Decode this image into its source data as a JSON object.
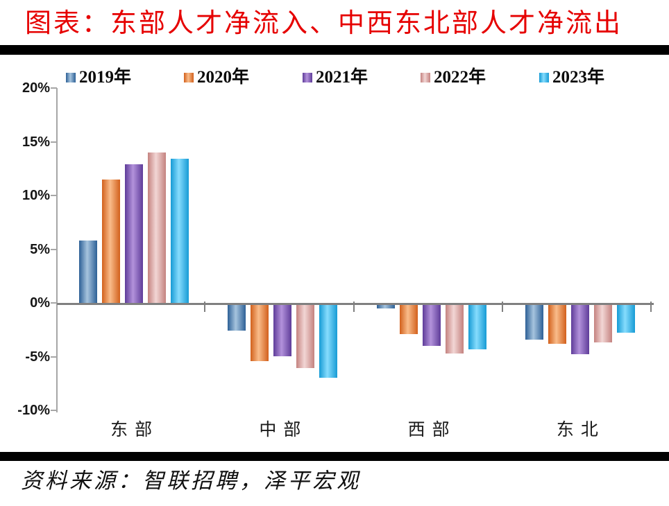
{
  "title": "图表：东部人才净流入、中西东北部人才净流出",
  "source": "资料来源：智联招聘，泽平宏观",
  "colors": {
    "title": "#e60000",
    "divider": "#000000",
    "axis": "#a6a6a6",
    "zero_line": "#808080",
    "label_text": "#0a0a0a"
  },
  "chart_data": {
    "type": "bar",
    "title": "图表：东部人才净流入、中西东北部人才净流出",
    "categories": [
      "东部",
      "中部",
      "西部",
      "东北"
    ],
    "series": [
      {
        "name": "2019年",
        "values": [
          5.8,
          -2.4,
          -0.3,
          -3.2
        ],
        "color": "#4878a8",
        "gradient_edge": "#2d6096",
        "gradient_mid": "#a6c4de"
      },
      {
        "name": "2020年",
        "values": [
          11.5,
          -5.2,
          -2.7,
          -3.6
        ],
        "color": "#ed7d31",
        "gradient_edge": "#d2601c",
        "gradient_mid": "#f9bc8a"
      },
      {
        "name": "2021年",
        "values": [
          12.9,
          -4.8,
          -3.8,
          -4.6
        ],
        "color": "#8064a2",
        "gradient_edge": "#5e3c99",
        "gradient_mid": "#b392db"
      },
      {
        "name": "2022年",
        "values": [
          14.0,
          -5.9,
          -4.5,
          -3.5
        ],
        "color": "#d99694",
        "gradient_edge": "#c4827f",
        "gradient_mid": "#f2d6d5"
      },
      {
        "name": "2023年",
        "values": [
          13.4,
          -6.8,
          -4.1,
          -2.6
        ],
        "color": "#41b6e6",
        "gradient_edge": "#169bd5",
        "gradient_mid": "#86dcfd"
      }
    ],
    "ylim": [
      -10,
      20
    ],
    "yticks": [
      {
        "label": "20%",
        "value": 20
      },
      {
        "label": "15%",
        "value": 15
      },
      {
        "label": "10%",
        "value": 10
      },
      {
        "label": "5%",
        "value": 5
      },
      {
        "label": "0%",
        "value": 0
      },
      {
        "label": "-5%",
        "value": -5
      },
      {
        "label": "-10%",
        "value": -10
      }
    ],
    "legend_position": "top",
    "grid": false,
    "ylabel": "",
    "xlabel": ""
  }
}
